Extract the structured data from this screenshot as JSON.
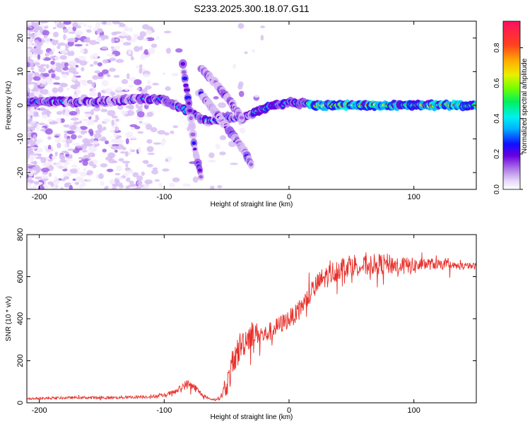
{
  "title": "S233.2025.300.18.07.G11",
  "chart_data": [
    {
      "type": "heatmap",
      "name": "spectrogram",
      "xlabel": "Height of straight line (km)",
      "ylabel": "Frequency (Hz)",
      "xlim": [
        -210,
        150
      ],
      "ylim": [
        -25,
        25
      ],
      "xticks": [
        -200,
        -100,
        0,
        100
      ],
      "yticks": [
        -20,
        -10,
        0,
        10,
        20
      ],
      "colorbar": {
        "label": "Normalized spectral amplitude",
        "range": [
          0,
          0.95
        ],
        "ticks": [
          0.0,
          0.2,
          0.4,
          0.6,
          0.8
        ],
        "tick_labels": [
          "0.0",
          "0.2",
          "0.4",
          "0.6",
          "0.8"
        ]
      },
      "features": [
        {
          "name": "main-line",
          "points": [
            [
              -210,
              1.0
            ],
            [
              -150,
              1.0
            ],
            [
              -120,
              2.0
            ],
            [
              -100,
              1.5
            ],
            [
              -80,
              -2.0
            ],
            [
              -65,
              -5.0
            ],
            [
              -50,
              -3.5
            ],
            [
              -38,
              -4.0
            ],
            [
              -20,
              -1.0
            ],
            [
              0,
              1.0
            ],
            [
              10,
              0.5
            ],
            [
              20,
              0.0
            ],
            [
              150,
              0.0
            ]
          ]
        },
        {
          "name": "branch-upper",
          "points": [
            [
              -70,
              11.0
            ],
            [
              -55,
              5.0
            ],
            [
              -45,
              0.0
            ],
            [
              -38,
              -4.0
            ]
          ]
        },
        {
          "name": "branch-lower",
          "points": [
            [
              -72,
              4.0
            ],
            [
              -55,
              -4.0
            ],
            [
              -45,
              -9.0
            ],
            [
              -35,
              -14.0
            ],
            [
              -30,
              -18.0
            ]
          ]
        },
        {
          "name": "branch-steep",
          "points": [
            [
              -85,
              12.0
            ],
            [
              -80,
              0.0
            ],
            [
              -76,
              -12.0
            ],
            [
              -70,
              -22.0
            ]
          ]
        }
      ]
    },
    {
      "type": "line",
      "name": "snr",
      "xlabel": "Height of straight line (km)",
      "ylabel": "SNR (10 * v/v)",
      "xlim": [
        -210,
        150
      ],
      "ylim": [
        0,
        800
      ],
      "xticks": [
        -200,
        -100,
        0,
        100
      ],
      "yticks": [
        0,
        200,
        400,
        600,
        800
      ],
      "color": "#e8302a",
      "series": [
        {
          "name": "SNR",
          "x": [
            -210,
            -190,
            -170,
            -150,
            -130,
            -110,
            -100,
            -90,
            -85,
            -80,
            -75,
            -70,
            -65,
            -60,
            -55,
            -50,
            -45,
            -40,
            -35,
            -30,
            -25,
            -20,
            -15,
            -10,
            -5,
            0,
            5,
            10,
            15,
            20,
            25,
            30,
            35,
            40,
            45,
            50,
            60,
            70,
            80,
            90,
            100,
            110,
            120,
            130,
            140,
            150
          ],
          "values": [
            20,
            22,
            25,
            24,
            26,
            30,
            35,
            55,
            80,
            90,
            70,
            40,
            20,
            15,
            25,
            80,
            180,
            260,
            300,
            330,
            330,
            320,
            340,
            360,
            380,
            400,
            420,
            460,
            500,
            540,
            580,
            600,
            620,
            640,
            650,
            660,
            650,
            660,
            660,
            650,
            650,
            660,
            660,
            650,
            650,
            650
          ],
          "spread": [
            10,
            12,
            12,
            14,
            14,
            16,
            18,
            25,
            40,
            50,
            40,
            20,
            10,
            10,
            20,
            100,
            160,
            150,
            140,
            130,
            100,
            90,
            90,
            90,
            90,
            90,
            90,
            90,
            100,
            110,
            110,
            110,
            110,
            110,
            110,
            110,
            100,
            100,
            100,
            90,
            80,
            60,
            50,
            40,
            35,
            30
          ]
        }
      ]
    }
  ]
}
